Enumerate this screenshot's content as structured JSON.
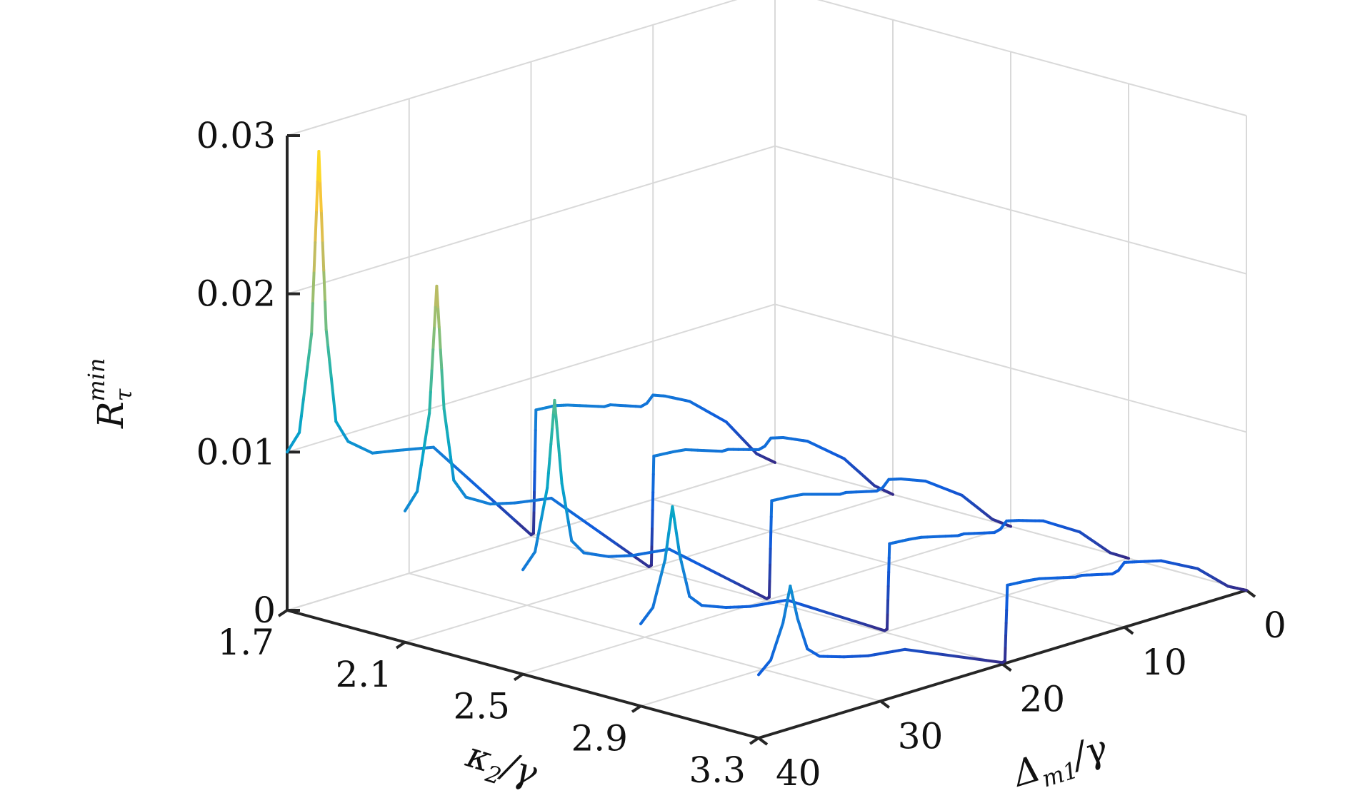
{
  "chart_data": {
    "type": "line",
    "subtype": "3d-waterfall",
    "title": "",
    "xlabel": {
      "main": "κ",
      "sub": "2",
      "rest": "/γ"
    },
    "ylabel": {
      "main": "Δ",
      "sub": "m1",
      "rest": "/γ"
    },
    "zlabel": {
      "main": "R",
      "sub": "τ",
      "sup": "min"
    },
    "x_ticks": [
      "1.7",
      "2.1",
      "2.5",
      "2.9",
      "3.3"
    ],
    "y_ticks": [
      "0",
      "10",
      "20",
      "30",
      "40"
    ],
    "z_ticks": [
      "0",
      "0.01",
      "0.02",
      "0.03"
    ],
    "xlim": [
      1.7,
      3.3
    ],
    "ylim": [
      0,
      40
    ],
    "zlim": [
      0,
      0.03
    ],
    "grid": true,
    "colormap": "parula",
    "colors": [
      "#352a87",
      "#0f5cdd",
      "#1481d6",
      "#06a4ca",
      "#2eb7a4",
      "#87bf77",
      "#d1bb59",
      "#fec832",
      "#f9fb0e"
    ],
    "series": [
      {
        "kappa2": 1.7,
        "points": [
          [
            0,
            0
          ],
          [
            1.5,
            0.0009
          ],
          [
            4,
            0.0035
          ],
          [
            7,
            0.0055
          ],
          [
            9,
            0.0063
          ],
          [
            10,
            0.0066
          ],
          [
            10.5,
            0.0062
          ],
          [
            11,
            0.0061
          ],
          [
            13.5,
            0.0068
          ],
          [
            14,
            0.0068
          ],
          [
            17,
            0.0076
          ],
          [
            18,
            0.0078
          ],
          [
            19.6,
            0.0079
          ],
          [
            19.8,
            0.00015
          ],
          [
            20,
            0.0001
          ],
          [
            28,
            0.0075
          ],
          [
            31,
            0.008
          ],
          [
            33,
            0.0083
          ],
          [
            35,
            0.0095
          ],
          [
            36,
            0.011
          ],
          [
            36.8,
            0.017
          ],
          [
            37.4,
            0.0284
          ],
          [
            38,
            0.017
          ],
          [
            39,
            0.011
          ],
          [
            40,
            0.01
          ]
        ]
      },
      {
        "kappa2": 2.1,
        "points": [
          [
            0,
            0
          ],
          [
            1.5,
            0.0009
          ],
          [
            4,
            0.0032
          ],
          [
            7,
            0.005
          ],
          [
            9,
            0.0057
          ],
          [
            10,
            0.0059
          ],
          [
            10.5,
            0.0055
          ],
          [
            11,
            0.0054
          ],
          [
            13.5,
            0.006
          ],
          [
            14,
            0.006
          ],
          [
            17,
            0.0068
          ],
          [
            18,
            0.0069
          ],
          [
            19.6,
            0.007
          ],
          [
            19.8,
            0.00015
          ],
          [
            20,
            0.0001
          ],
          [
            28,
            0.0063
          ],
          [
            31,
            0.0067
          ],
          [
            33,
            0.0071
          ],
          [
            35,
            0.008
          ],
          [
            36,
            0.0093
          ],
          [
            36.8,
            0.014
          ],
          [
            37.4,
            0.0219
          ],
          [
            38,
            0.014
          ],
          [
            39,
            0.0093
          ],
          [
            40,
            0.0083
          ]
        ]
      },
      {
        "kappa2": 2.5,
        "points": [
          [
            0,
            0
          ],
          [
            1.5,
            0.0008
          ],
          [
            4,
            0.0029
          ],
          [
            7,
            0.0045
          ],
          [
            9,
            0.0051
          ],
          [
            10,
            0.0053
          ],
          [
            10.5,
            0.0049
          ],
          [
            11,
            0.0048
          ],
          [
            13.5,
            0.0053
          ],
          [
            14,
            0.0053
          ],
          [
            17,
            0.006
          ],
          [
            18,
            0.0061
          ],
          [
            19.6,
            0.0062
          ],
          [
            19.8,
            0.00015
          ],
          [
            20,
            0.0001
          ],
          [
            28,
            0.0051
          ],
          [
            31,
            0.0054
          ],
          [
            33,
            0.0058
          ],
          [
            35,
            0.0065
          ],
          [
            36,
            0.0075
          ],
          [
            36.8,
            0.0113
          ],
          [
            37.4,
            0.0167
          ],
          [
            38,
            0.0113
          ],
          [
            39,
            0.0075
          ],
          [
            40,
            0.0066
          ]
        ]
      },
      {
        "kappa2": 2.9,
        "points": [
          [
            0,
            0
          ],
          [
            1.5,
            0.0007
          ],
          [
            4,
            0.0026
          ],
          [
            7,
            0.004
          ],
          [
            9,
            0.0045
          ],
          [
            10,
            0.0047
          ],
          [
            10.5,
            0.0043
          ],
          [
            11,
            0.0042
          ],
          [
            13.5,
            0.0047
          ],
          [
            14,
            0.0047
          ],
          [
            17,
            0.0053
          ],
          [
            18,
            0.0054
          ],
          [
            19.6,
            0.0055
          ],
          [
            19.8,
            0.00015
          ],
          [
            20,
            0.0001
          ],
          [
            28,
            0.0039
          ],
          [
            31,
            0.0042
          ],
          [
            33,
            0.0046
          ],
          [
            35,
            0.0052
          ],
          [
            36,
            0.006
          ],
          [
            36.8,
            0.0088
          ],
          [
            37.4,
            0.012
          ],
          [
            38,
            0.0088
          ],
          [
            39,
            0.006
          ],
          [
            40,
            0.0052
          ]
        ]
      },
      {
        "kappa2": 3.3,
        "points": [
          [
            0,
            0
          ],
          [
            1.5,
            0.0006
          ],
          [
            4,
            0.0023
          ],
          [
            7,
            0.0035
          ],
          [
            9,
            0.0039
          ],
          [
            10,
            0.0041
          ],
          [
            10.5,
            0.0037
          ],
          [
            11,
            0.0036
          ],
          [
            13.5,
            0.0041
          ],
          [
            14,
            0.0041
          ],
          [
            17,
            0.0047
          ],
          [
            18,
            0.0048
          ],
          [
            19.6,
            0.0049
          ],
          [
            19.8,
            0.00015
          ],
          [
            20,
            0.0001
          ],
          [
            28,
            0.0028
          ],
          [
            31,
            0.0031
          ],
          [
            33,
            0.0035
          ],
          [
            35,
            0.004
          ],
          [
            36,
            0.0047
          ],
          [
            36.8,
            0.0068
          ],
          [
            37.4,
            0.009
          ],
          [
            38,
            0.0068
          ],
          [
            39,
            0.0047
          ],
          [
            40,
            0.004
          ]
        ]
      }
    ]
  }
}
